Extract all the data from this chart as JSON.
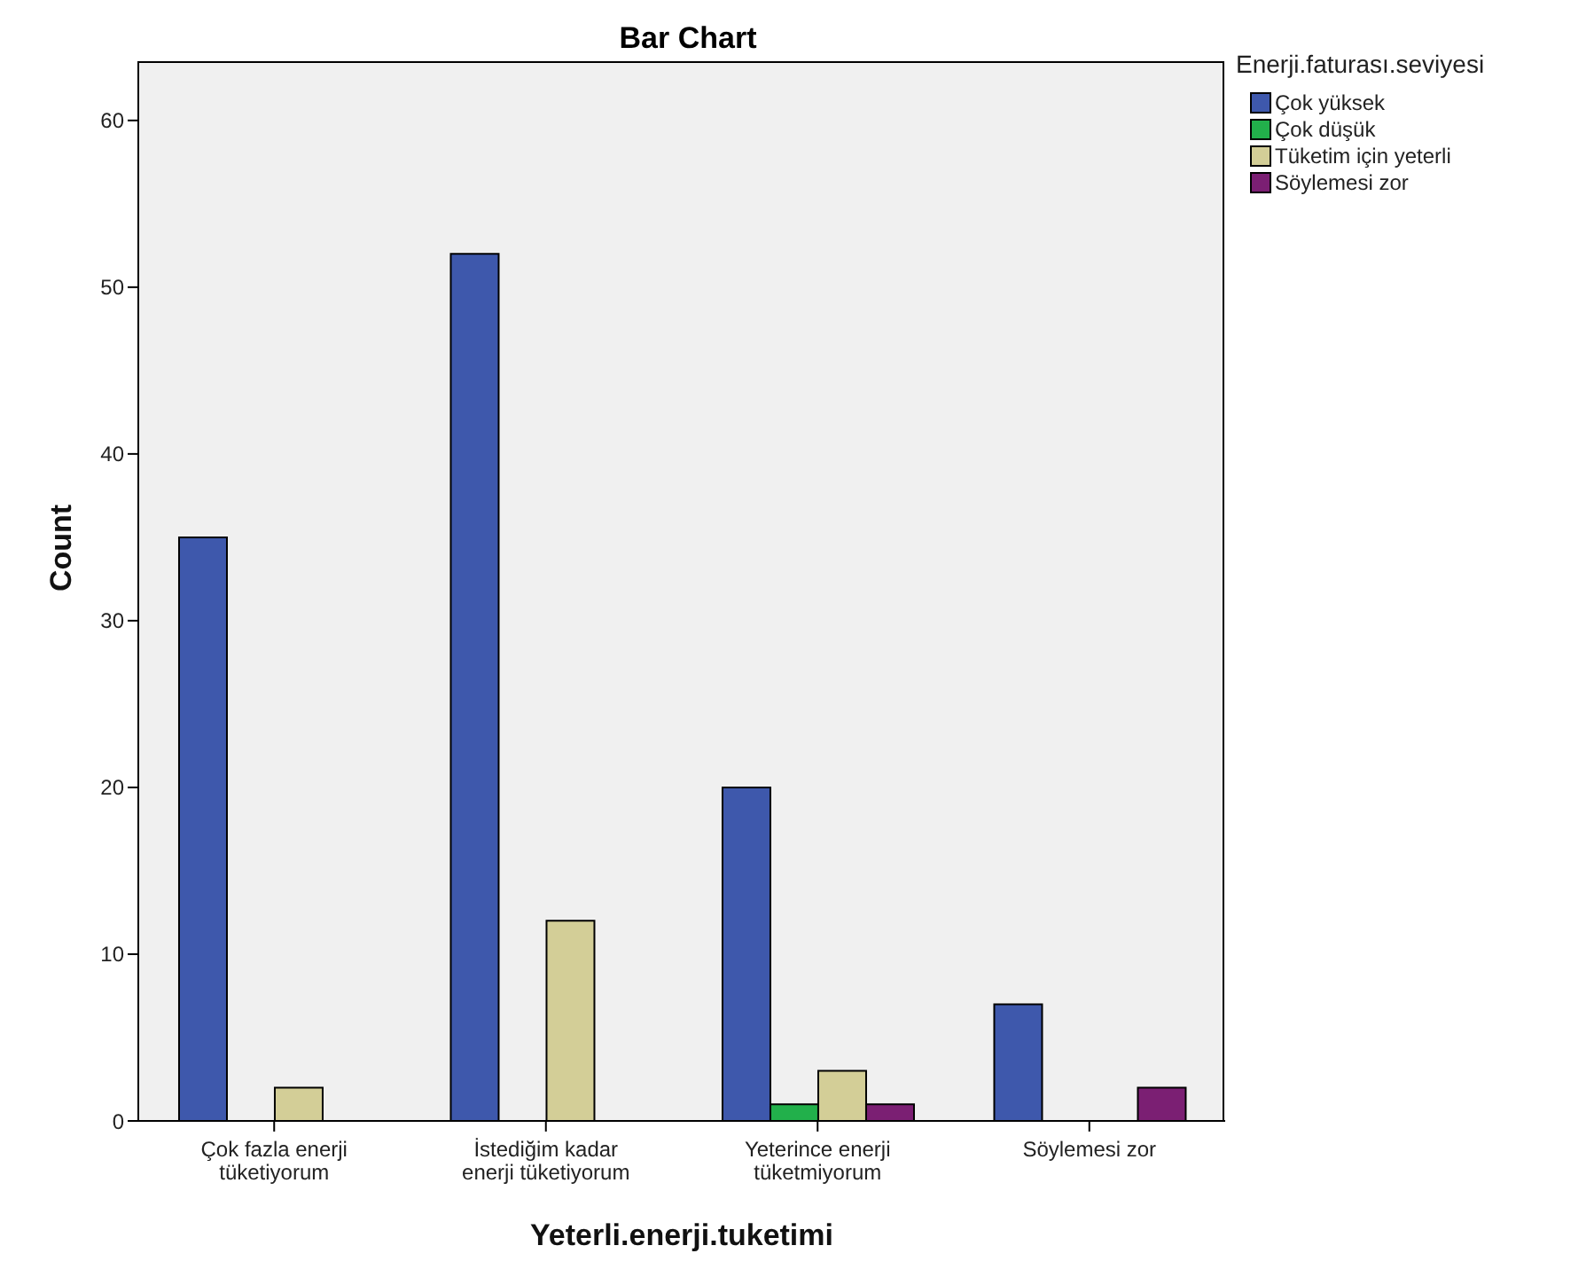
{
  "chart_data": {
    "type": "bar",
    "title": "Bar Chart",
    "xlabel": "Yeterli.enerji.tuketimi",
    "ylabel": "Count",
    "legend_title": "Enerji.faturası.seviyesi",
    "categories": [
      "Çok fazla enerji tüketiyorum",
      "İstediğim kadar enerji tüketiyorum",
      "Yeterince enerji tüketmiyorum",
      "Söylemesi zor"
    ],
    "series": [
      {
        "name": "Çok yüksek",
        "color": "#3e58ac",
        "values": [
          35,
          52,
          20,
          7
        ]
      },
      {
        "name": "Çok düşük",
        "color": "#22b04b",
        "values": [
          null,
          null,
          1,
          null
        ]
      },
      {
        "name": "Tüketim için yeterli",
        "color": "#d3ce97",
        "values": [
          2,
          12,
          3,
          null
        ]
      },
      {
        "name": "Söylemesi zor",
        "color": "#7b1f73",
        "values": [
          null,
          null,
          1,
          2
        ]
      }
    ],
    "ylim": [
      0,
      63.5
    ],
    "yticks": [
      0,
      10,
      20,
      30,
      40,
      50,
      60
    ],
    "legend": "top right"
  }
}
